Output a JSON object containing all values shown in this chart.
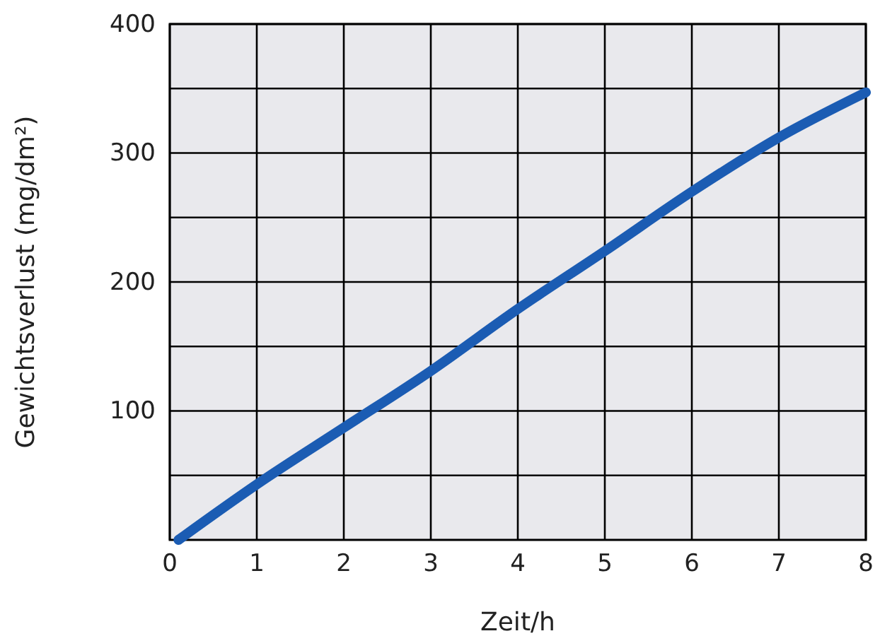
{
  "chart_data": {
    "type": "line",
    "xlabel": "Zeit/h",
    "ylabel": "Gewichtsverlust (mg/dm²)",
    "x": [
      0.1,
      1,
      2,
      3,
      4,
      5,
      6,
      7,
      8
    ],
    "series": [
      {
        "color": "#1b5cb3",
        "values": [
          0,
          43,
          87,
          131,
          179,
          224,
          270,
          312,
          347
        ]
      }
    ],
    "xlim": [
      0,
      8
    ],
    "xticks": [
      0,
      1,
      2,
      3,
      4,
      5,
      6,
      7,
      8
    ],
    "ylim": [
      0,
      400
    ],
    "yticks": [
      {
        "value": 50,
        "label": null
      },
      100,
      {
        "value": 150,
        "label": null
      },
      200,
      {
        "value": 250,
        "label": null
      },
      300,
      {
        "value": 350,
        "label": null
      },
      400
    ],
    "grid": true,
    "line_style": "solid",
    "marker": "none"
  }
}
